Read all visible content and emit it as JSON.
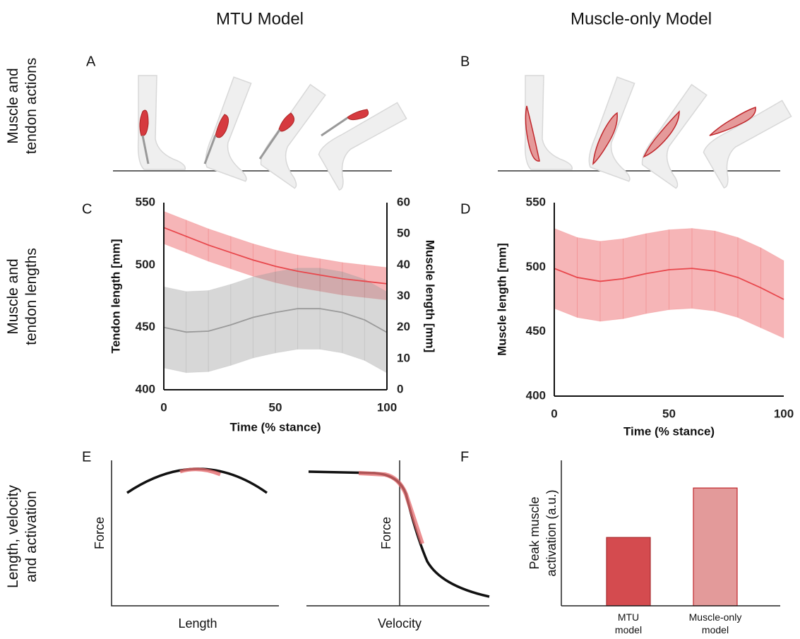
{
  "column_titles": [
    "MTU Model",
    "Muscle-only Model"
  ],
  "row_labels": [
    "Muscle and tendon actions",
    "Muscle and tendon lengths",
    "Length, velocity and activation"
  ],
  "panel_letters": [
    "A",
    "B",
    "C",
    "D",
    "E",
    "F"
  ],
  "concept_panels": [
    {
      "xlabel": "Length",
      "ylabel": "Force"
    },
    {
      "xlabel": "Velocity",
      "ylabel": "Force"
    }
  ],
  "chart_data": [
    {
      "type": "line",
      "xlabel": "Time (% stance)",
      "ylabel": "Tendon length [mm]",
      "y2label": "Muscle length [mm]",
      "x": [
        0,
        10,
        20,
        30,
        40,
        50,
        60,
        70,
        80,
        90,
        100
      ],
      "xlim": [
        0,
        100
      ],
      "xticks": [
        0,
        50,
        100
      ],
      "ylim": [
        400,
        550
      ],
      "yticks": [
        400,
        450,
        500,
        550
      ],
      "y2lim": [
        0,
        60
      ],
      "y2ticks": [
        0,
        10,
        20,
        30,
        40,
        50,
        60
      ],
      "series": [
        {
          "color": "#e8474c",
          "values": [
            530,
            523,
            516,
            510,
            504,
            499,
            495,
            492,
            489,
            487,
            485
          ],
          "error": [
            13,
            13,
            13,
            13,
            13,
            13,
            13,
            13,
            13,
            13,
            13
          ]
        },
        {
          "color": "#9a9a9a",
          "axis": "y2",
          "values": [
            20,
            18.5,
            18.8,
            20.8,
            23.2,
            24.8,
            26,
            26,
            24.8,
            22.4,
            18.4
          ],
          "error": [
            13,
            13,
            13,
            13,
            13,
            13,
            13,
            13,
            13,
            13,
            13
          ]
        }
      ]
    },
    {
      "type": "line",
      "xlabel": "Time (% stance)",
      "ylabel": "Muscle length [mm]",
      "x": [
        0,
        10,
        20,
        30,
        40,
        50,
        60,
        70,
        80,
        90,
        100
      ],
      "xlim": [
        0,
        100
      ],
      "xticks": [
        0,
        50,
        100
      ],
      "ylim": [
        400,
        550
      ],
      "yticks": [
        400,
        450,
        500,
        550
      ],
      "series": [
        {
          "color": "#e8474c",
          "values": [
            499,
            492,
            489,
            491,
            495,
            498,
            499,
            497,
            492,
            484,
            475
          ],
          "error": [
            31,
            31,
            31,
            31,
            31,
            31,
            31,
            31,
            31,
            31,
            30
          ]
        }
      ]
    },
    {
      "type": "bar",
      "ylabel": "Peak muscle activation (a.u.)",
      "categories": [
        "MTU model",
        "Muscle-only model"
      ],
      "values": [
        0.47,
        0.81
      ],
      "colors": [
        "#d44b4f",
        "#e39a9a"
      ],
      "ylim": [
        0,
        1
      ]
    }
  ]
}
